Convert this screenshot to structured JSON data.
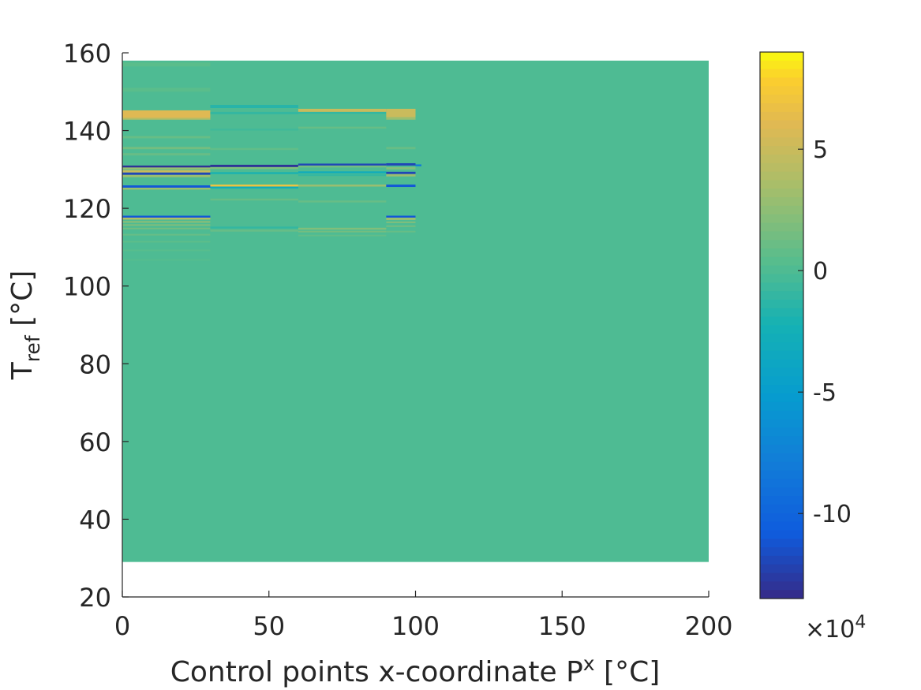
{
  "chart_data": {
    "type": "heatmap",
    "title": "",
    "xlabel": "Control points x-coordinate P",
    "xlabel_sup": "x",
    "xlabel_unit": " [°C]",
    "ylabel": "T",
    "ylabel_sub": "ref",
    "ylabel_unit": " [°C]",
    "xlim": [
      0,
      200
    ],
    "ylim": [
      20,
      160
    ],
    "x_ticks": [
      0,
      50,
      100,
      150,
      200
    ],
    "y_ticks": [
      20,
      40,
      60,
      80,
      100,
      120,
      140,
      160
    ],
    "image_extent": {
      "x": [
        0,
        200
      ],
      "y": [
        29,
        158
      ]
    },
    "background_value": 0,
    "columns": [
      {
        "x": [
          0,
          30
        ],
        "bands": [
          {
            "y": [
              156.5,
              157.5
            ],
            "value": 0.5
          },
          {
            "y": [
              150,
              151
            ],
            "value": 0.5
          },
          {
            "y": [
              143.2,
              145.2
            ],
            "value": 6
          },
          {
            "y": [
              142.8,
              143.2
            ],
            "value": 4
          },
          {
            "y": [
              138,
              138.6
            ],
            "value": 1
          },
          {
            "y": [
              135.2,
              135.8
            ],
            "value": 1.5
          },
          {
            "y": [
              133.6,
              134.2
            ],
            "value": 1
          },
          {
            "y": [
              130.5,
              131.0
            ],
            "value": -13
          },
          {
            "y": [
              130.0,
              130.5
            ],
            "value": 3
          },
          {
            "y": [
              129.2,
              129.8
            ],
            "value": 5
          },
          {
            "y": [
              128.6,
              129.2
            ],
            "value": -12
          },
          {
            "y": [
              128.0,
              128.6
            ],
            "value": 3
          },
          {
            "y": [
              125.3,
              125.9
            ],
            "value": -11
          },
          {
            "y": [
              124.8,
              125.3
            ],
            "value": 3
          },
          {
            "y": [
              117.6,
              118.1
            ],
            "value": -11
          },
          {
            "y": [
              117.1,
              117.6
            ],
            "value": 4
          },
          {
            "y": [
              116.3,
              116.7
            ],
            "value": 2.5
          },
          {
            "y": [
              115.5,
              115.9
            ],
            "value": 2
          },
          {
            "y": [
              114.6,
              115.0
            ],
            "value": 1.5
          },
          {
            "y": [
              113.0,
              113.4
            ],
            "value": 1
          },
          {
            "y": [
              111.2,
              111.6
            ],
            "value": 0.6
          },
          {
            "y": [
              109.0,
              109.4
            ],
            "value": 0.4
          },
          {
            "y": [
              106.5,
              106.9
            ],
            "value": 0.3
          }
        ]
      },
      {
        "x": [
          30,
          60
        ],
        "bands": [
          {
            "y": [
              145.8,
              146.6
            ],
            "value": -1.5
          },
          {
            "y": [
              144.2,
              144.8
            ],
            "value": -1
          },
          {
            "y": [
              140,
              140.5
            ],
            "value": -0.5
          },
          {
            "y": [
              135.0,
              135.5
            ],
            "value": 0.8
          },
          {
            "y": [
              130.6,
              131.2
            ],
            "value": -13
          },
          {
            "y": [
              130.1,
              130.6
            ],
            "value": 2
          },
          {
            "y": [
              128.8,
              129.3
            ],
            "value": -2
          },
          {
            "y": [
              125.6,
              126.1
            ],
            "value": 7
          },
          {
            "y": [
              125.1,
              125.6
            ],
            "value": -3
          },
          {
            "y": [
              122,
              122.5
            ],
            "value": 1
          },
          {
            "y": [
              114.8,
              115.3
            ],
            "value": -1
          },
          {
            "y": [
              114.0,
              114.5
            ],
            "value": 1
          }
        ]
      },
      {
        "x": [
          60,
          90
        ],
        "bands": [
          {
            "y": [
              144.8,
              145.6
            ],
            "value": 5
          },
          {
            "y": [
              144.3,
              144.8
            ],
            "value": -1
          },
          {
            "y": [
              140.5,
              141.0
            ],
            "value": 1
          },
          {
            "y": [
              131.0,
              131.5
            ],
            "value": -12
          },
          {
            "y": [
              130.5,
              131.0
            ],
            "value": 1.5
          },
          {
            "y": [
              129.0,
              129.5
            ],
            "value": -3
          },
          {
            "y": [
              128.3,
              128.8
            ],
            "value": -1
          },
          {
            "y": [
              125.6,
              126.1
            ],
            "value": 3
          },
          {
            "y": [
              121.5,
              122.0
            ],
            "value": 1
          },
          {
            "y": [
              114.5,
              115.0
            ],
            "value": 2
          },
          {
            "y": [
              113.8,
              114.2
            ],
            "value": 1.5
          },
          {
            "y": [
              112.8,
              113.2
            ],
            "value": 0.8
          }
        ]
      },
      {
        "x": [
          90,
          100
        ],
        "bands": [
          {
            "y": [
              143.4,
              145.6
            ],
            "value": 5
          },
          {
            "y": [
              142.8,
              143.4
            ],
            "value": 3
          },
          {
            "y": [
              135.2,
              135.8
            ],
            "value": 1
          },
          {
            "y": [
              131.0,
              131.6
            ],
            "value": -12
          },
          {
            "y": [
              130.0,
              130.6
            ],
            "value": 2
          },
          {
            "y": [
              128.8,
              129.4
            ],
            "value": -12
          },
          {
            "y": [
              128.2,
              128.8
            ],
            "value": 3
          },
          {
            "y": [
              125.5,
              126.1
            ],
            "value": -11
          },
          {
            "y": [
              117.6,
              118.1
            ],
            "value": -11
          },
          {
            "y": [
              117.0,
              117.6
            ],
            "value": 3
          },
          {
            "y": [
              116.2,
              116.6
            ],
            "value": 2
          },
          {
            "y": [
              115.2,
              115.6
            ],
            "value": 1.5
          },
          {
            "y": [
              113.8,
              114.2
            ],
            "value": 1
          }
        ]
      },
      {
        "x": [
          100,
          102
        ],
        "bands": [
          {
            "y": [
              130.8,
              131.3
            ],
            "value": -8
          }
        ]
      }
    ],
    "colorbar": {
      "min": -13.5,
      "max": 9,
      "ticks": [
        -10,
        -5,
        0,
        5
      ],
      "tick_labels": [
        "-10",
        "-5",
        "0",
        "5"
      ],
      "multiplier_prefix": "×10",
      "multiplier_exp": "4",
      "colormap": "parula"
    },
    "grid": false
  }
}
